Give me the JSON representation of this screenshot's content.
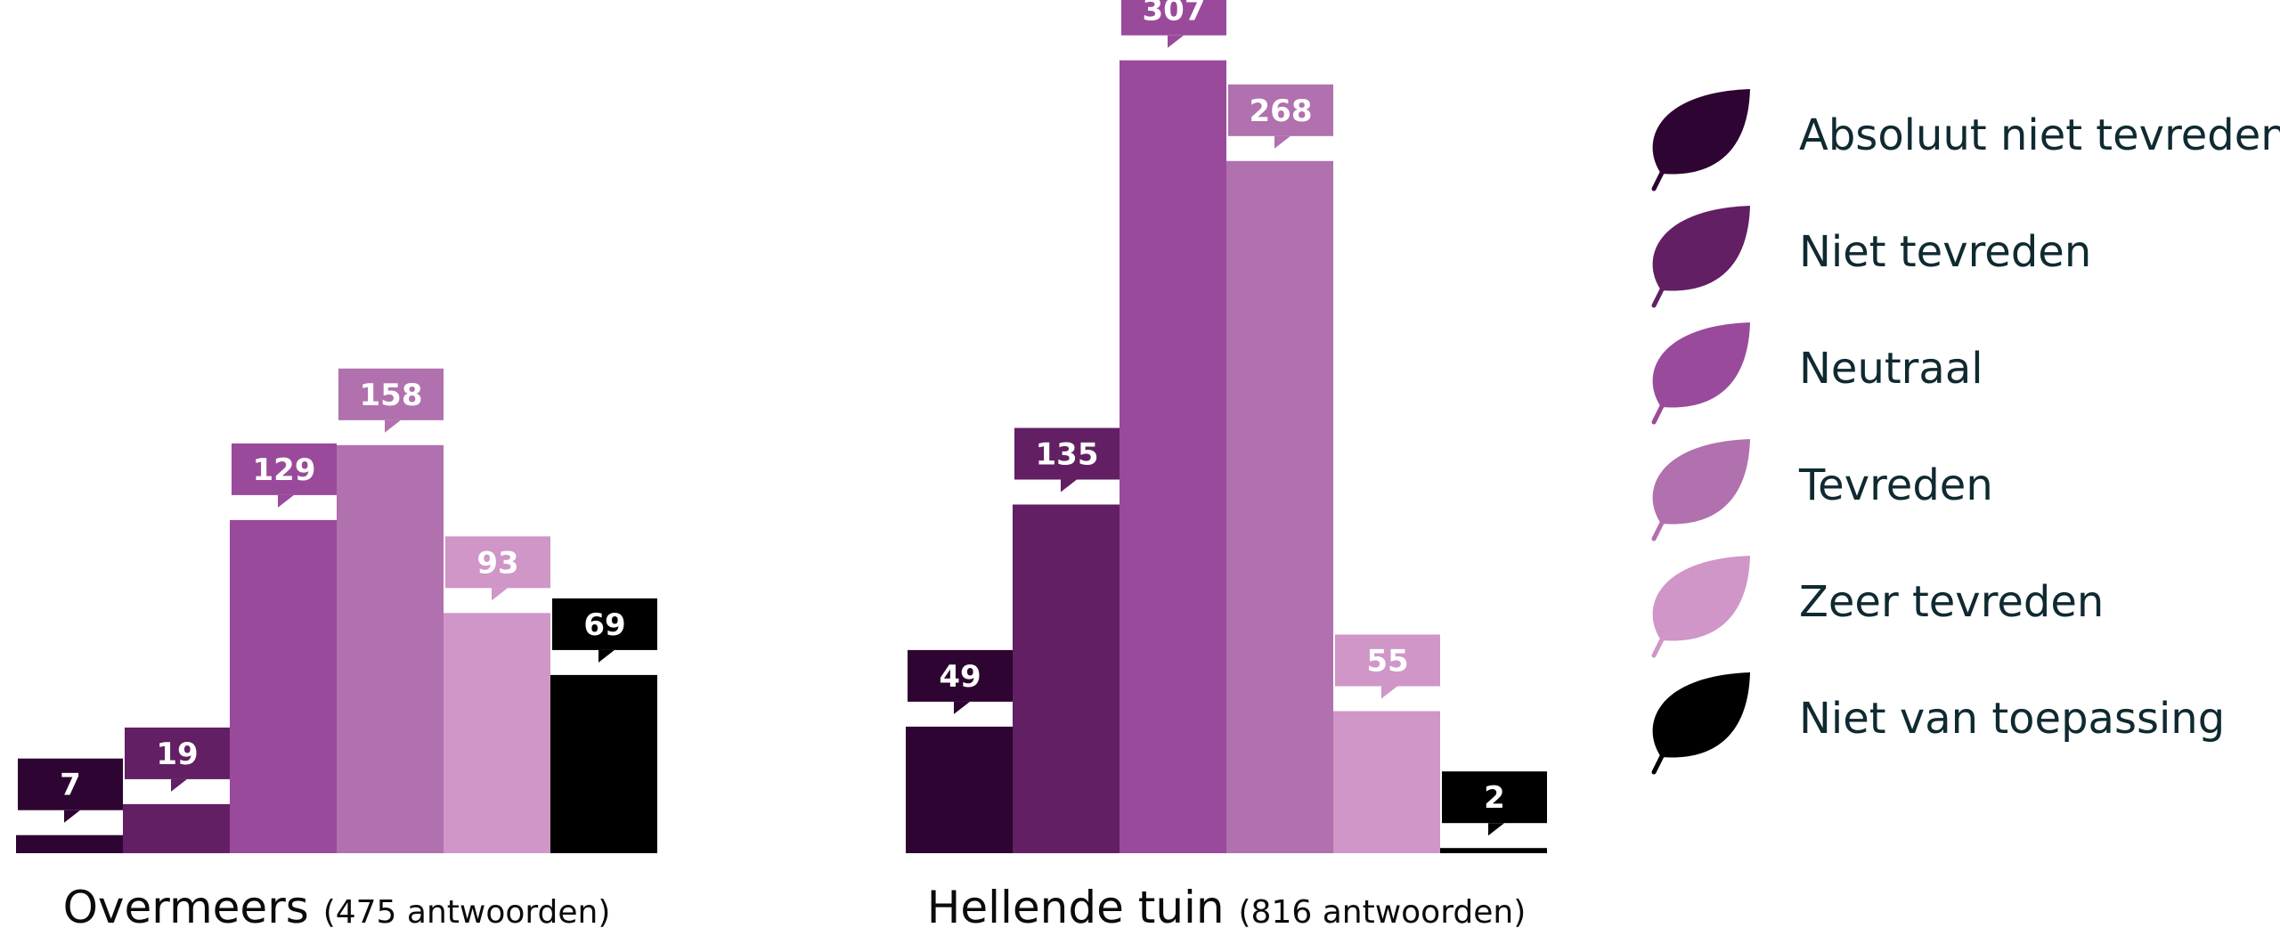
{
  "chart_data": {
    "type": "bar",
    "series": [
      {
        "name": "Absoluut niet tevreden",
        "color": "#2e0432",
        "values": [
          7,
          49
        ]
      },
      {
        "name": "Niet tevreden",
        "color": "#621f63",
        "values": [
          19,
          135
        ]
      },
      {
        "name": "Neutraal",
        "color": "#9a4a9b",
        "values": [
          129,
          307
        ]
      },
      {
        "name": "Tevreden",
        "color": "#b170ae",
        "values": [
          158,
          268
        ]
      },
      {
        "name": "Zeer tevreden",
        "color": "#cf96c7",
        "values": [
          93,
          55
        ]
      },
      {
        "name": "Niet van toepassing",
        "color": "#000000",
        "values": [
          69,
          2
        ]
      }
    ],
    "groups": [
      {
        "name": "Overmeers",
        "responses": "(475 antwoorden)"
      },
      {
        "name": "Hellende tuin",
        "responses": "(816 antwoorden)"
      }
    ],
    "legend_position": "right",
    "grid": false
  }
}
